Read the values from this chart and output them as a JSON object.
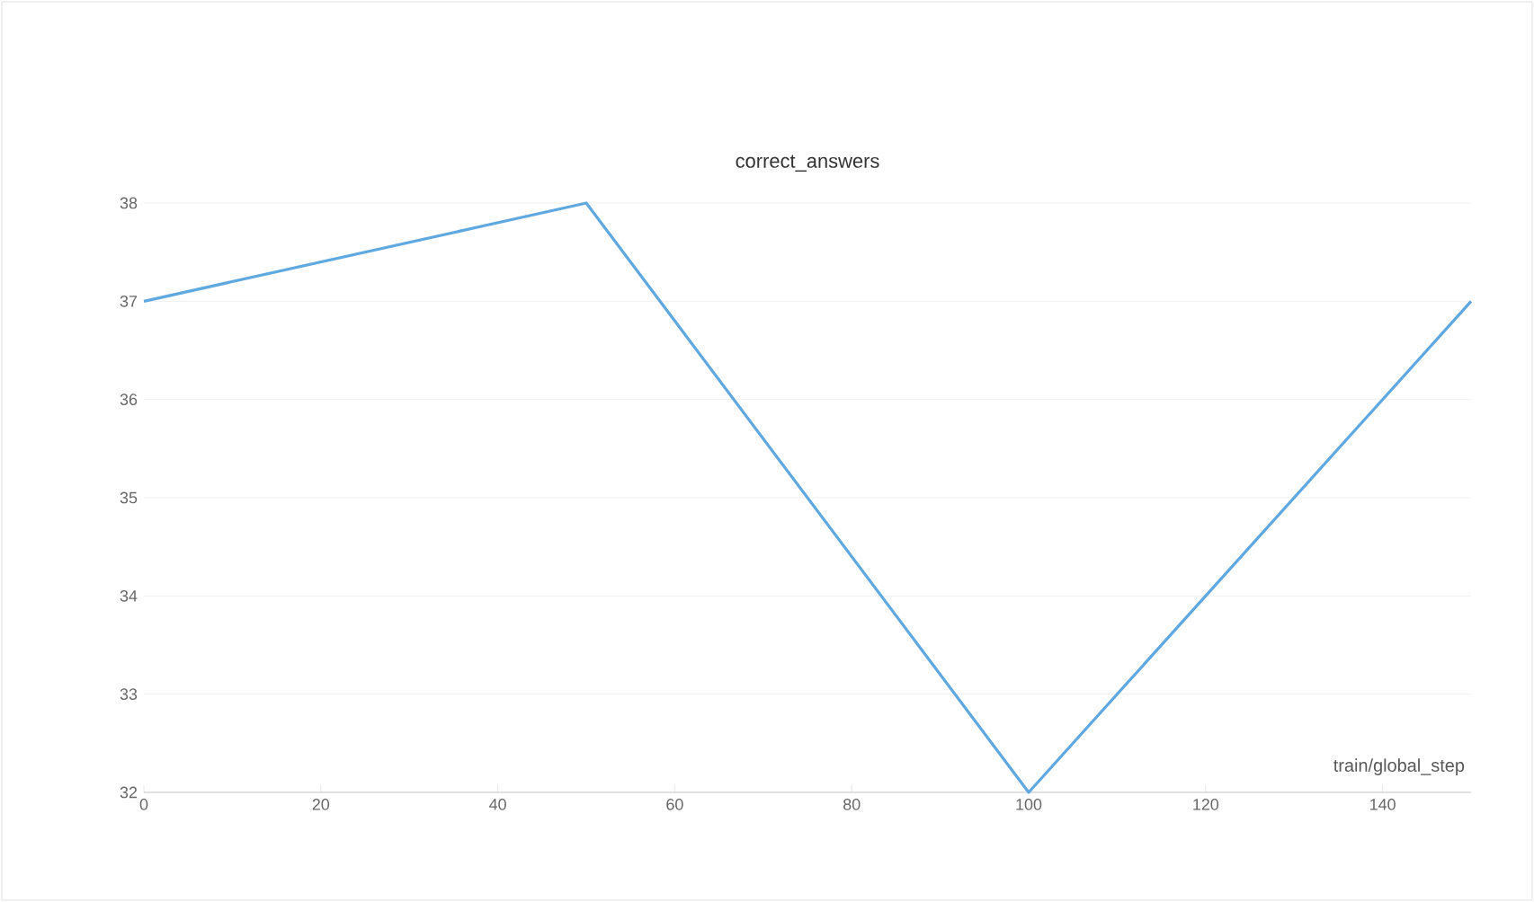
{
  "chart_data": {
    "type": "line",
    "title": "correct_answers",
    "xlabel": "train/global_step",
    "x": [
      0,
      50,
      100,
      150
    ],
    "series": [
      {
        "color": "#5fa8e0",
        "values": [
          37,
          38,
          32,
          37
        ]
      }
    ],
    "xlim": [
      0,
      150
    ],
    "xticks": [
      0,
      20,
      40,
      60,
      80,
      100,
      120,
      140
    ],
    "ylim": [
      32,
      38
    ],
    "yticks": [
      32,
      33,
      34,
      35,
      36,
      37,
      38
    ],
    "grid": "y",
    "marker": "none",
    "line_style": "solid"
  }
}
